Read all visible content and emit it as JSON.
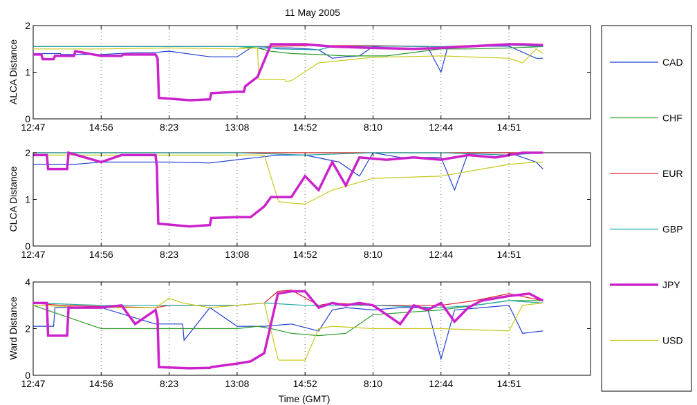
{
  "chart_data": [
    {
      "type": "line",
      "title": "11 May 2005",
      "ylabel": "ALCA Distance",
      "xlabel": "",
      "xlim": [
        0,
        820
      ],
      "ylim": [
        0,
        2
      ],
      "yticks": [
        0,
        1,
        2
      ],
      "xtick_positions": [
        0,
        100,
        200,
        300,
        400,
        500,
        600,
        700
      ],
      "xtick_labels": [
        "12:47",
        "14:56",
        "8:23",
        "13:08",
        "14:52",
        "8:10",
        "12:44",
        "14:51"
      ],
      "grid": "vertical dotted",
      "series": [
        {
          "name": "CAD",
          "color": "#1f3fd1",
          "x": [
            0,
            40,
            41,
            100,
            150,
            180,
            190,
            200,
            260,
            300,
            320,
            380,
            405,
            420,
            440,
            460,
            480,
            500,
            520,
            580,
            600,
            610,
            620,
            700,
            740,
            750
          ],
          "y": [
            1.4,
            1.4,
            1.38,
            1.38,
            1.42,
            1.42,
            1.44,
            1.45,
            1.33,
            1.33,
            1.52,
            1.52,
            1.5,
            1.48,
            1.3,
            1.33,
            1.35,
            1.55,
            1.56,
            1.55,
            1.0,
            1.55,
            1.55,
            1.56,
            1.3,
            1.3
          ]
        },
        {
          "name": "CHF",
          "color": "#2a9a2a",
          "x": [
            0,
            100,
            200,
            300,
            330,
            350,
            380,
            420,
            460,
            520,
            600,
            640,
            700,
            750
          ],
          "y": [
            1.55,
            1.55,
            1.55,
            1.55,
            1.52,
            1.45,
            1.4,
            1.38,
            1.35,
            1.35,
            1.5,
            1.5,
            1.52,
            1.55
          ]
        },
        {
          "name": "EUR",
          "color": "#e0202a",
          "x": [
            0,
            40,
            100,
            200,
            300,
            340,
            400,
            500,
            600,
            700,
            750
          ],
          "y": [
            1.55,
            1.55,
            1.55,
            1.55,
            1.55,
            1.55,
            1.57,
            1.57,
            1.55,
            1.6,
            1.58
          ]
        },
        {
          "name": "GBP",
          "color": "#1aa6a6",
          "x": [
            0,
            100,
            200,
            300,
            340,
            360,
            420,
            440,
            480,
            520,
            600,
            700,
            750
          ],
          "y": [
            1.55,
            1.55,
            1.55,
            1.55,
            1.55,
            1.5,
            1.48,
            1.55,
            1.56,
            1.56,
            1.55,
            1.58,
            1.55
          ]
        },
        {
          "name": "JPY",
          "color": "#cc22cc",
          "x": [
            0,
            12,
            14,
            30,
            32,
            60,
            62,
            100,
            130,
            132,
            180,
            183,
            185,
            230,
            232,
            260,
            262,
            300,
            310,
            312,
            330,
            350,
            400,
            440,
            500,
            560,
            600,
            700,
            720,
            750
          ],
          "y": [
            1.38,
            1.38,
            1.28,
            1.28,
            1.35,
            1.35,
            1.45,
            1.35,
            1.35,
            1.38,
            1.38,
            1.3,
            0.45,
            0.4,
            0.4,
            0.42,
            0.55,
            0.58,
            0.58,
            0.7,
            0.9,
            1.6,
            1.6,
            1.55,
            1.52,
            1.5,
            1.52,
            1.6,
            1.6,
            1.58
          ]
        },
        {
          "name": "USD",
          "color": "#c8c81a",
          "x": [
            0,
            100,
            200,
            300,
            330,
            332,
            370,
            372,
            380,
            420,
            500,
            600,
            700,
            720,
            740,
            750
          ],
          "y": [
            1.5,
            1.5,
            1.52,
            1.5,
            1.52,
            0.85,
            0.85,
            0.8,
            0.82,
            1.2,
            1.32,
            1.35,
            1.3,
            1.2,
            1.5,
            1.4
          ]
        }
      ]
    },
    {
      "type": "line",
      "title": "",
      "ylabel": "CLCA Distance",
      "xlabel": "",
      "xlim": [
        0,
        820
      ],
      "ylim": [
        0,
        2
      ],
      "yticks": [
        0,
        1,
        2
      ],
      "xtick_positions": [
        0,
        100,
        200,
        300,
        400,
        500,
        600,
        700
      ],
      "xtick_labels": [
        "12:47",
        "14:56",
        "8:23",
        "13:08",
        "14:52",
        "8:10",
        "12:44",
        "14:51"
      ],
      "grid": "vertical dotted",
      "series": [
        {
          "name": "CAD",
          "color": "#1f3fd1",
          "x": [
            0,
            60,
            100,
            200,
            260,
            300,
            330,
            360,
            400,
            450,
            480,
            500,
            540,
            600,
            620,
            640,
            700,
            740,
            750
          ],
          "y": [
            1.75,
            1.75,
            1.8,
            1.8,
            1.78,
            1.85,
            1.9,
            1.95,
            1.95,
            1.8,
            1.5,
            2.0,
            1.9,
            1.9,
            1.2,
            2.0,
            2.0,
            1.8,
            1.65
          ]
        },
        {
          "name": "CHF",
          "color": "#2a9a2a",
          "x": [
            0,
            100,
            200,
            300,
            400,
            500,
            600,
            700,
            750
          ],
          "y": [
            2.0,
            2.0,
            2.0,
            2.0,
            2.0,
            2.0,
            2.0,
            2.0,
            2.0
          ]
        },
        {
          "name": "EUR",
          "color": "#e0202a",
          "x": [
            0,
            100,
            200,
            300,
            400,
            500,
            600,
            700,
            750
          ],
          "y": [
            2.0,
            2.0,
            2.0,
            2.0,
            2.0,
            2.0,
            2.0,
            2.0,
            2.0
          ]
        },
        {
          "name": "GBP",
          "color": "#1aa6a6",
          "x": [
            0,
            100,
            200,
            300,
            400,
            500,
            600,
            700,
            750
          ],
          "y": [
            2.0,
            2.0,
            2.0,
            2.0,
            1.95,
            2.0,
            2.0,
            1.95,
            2.0
          ]
        },
        {
          "name": "JPY",
          "color": "#cc22cc",
          "x": [
            0,
            20,
            22,
            50,
            52,
            100,
            130,
            180,
            182,
            184,
            230,
            260,
            262,
            300,
            320,
            340,
            350,
            380,
            382,
            400,
            420,
            440,
            460,
            480,
            520,
            560,
            600,
            640,
            680,
            720,
            750
          ],
          "y": [
            1.95,
            1.95,
            1.65,
            1.65,
            2.0,
            1.8,
            1.95,
            1.95,
            1.7,
            0.48,
            0.42,
            0.45,
            0.6,
            0.62,
            0.62,
            0.85,
            1.05,
            1.05,
            1.1,
            1.5,
            1.2,
            1.8,
            1.3,
            1.9,
            1.85,
            1.9,
            1.85,
            1.95,
            1.9,
            2.0,
            2.0
          ]
        },
        {
          "name": "USD",
          "color": "#c8c81a",
          "x": [
            0,
            100,
            200,
            300,
            320,
            340,
            360,
            362,
            380,
            400,
            440,
            500,
            600,
            700,
            740,
            750
          ],
          "y": [
            1.95,
            1.95,
            1.95,
            1.95,
            1.95,
            1.95,
            1.0,
            0.95,
            0.92,
            0.9,
            1.2,
            1.45,
            1.5,
            1.75,
            1.8,
            1.8
          ]
        }
      ]
    },
    {
      "type": "line",
      "title": "",
      "ylabel": "Ward Distance",
      "xlabel": "Time (GMT)",
      "xlim": [
        0,
        820
      ],
      "ylim": [
        0,
        4
      ],
      "yticks": [
        0,
        2,
        4
      ],
      "xtick_positions": [
        0,
        100,
        200,
        300,
        400,
        500,
        600,
        700
      ],
      "xtick_labels": [
        "12:47",
        "14:56",
        "8:23",
        "13:08",
        "14:52",
        "8:10",
        "12:44",
        "14:51"
      ],
      "grid": "vertical dotted",
      "series": [
        {
          "name": "CAD",
          "color": "#1f3fd1",
          "x": [
            0,
            30,
            32,
            100,
            180,
            200,
            220,
            222,
            260,
            300,
            340,
            380,
            420,
            440,
            460,
            500,
            540,
            580,
            600,
            620,
            700,
            720,
            750
          ],
          "y": [
            2.1,
            2.1,
            2.9,
            2.9,
            2.2,
            2.2,
            2.2,
            1.5,
            2.9,
            2.1,
            2.1,
            2.2,
            1.9,
            2.8,
            2.9,
            2.8,
            2.9,
            2.9,
            0.7,
            2.8,
            3.0,
            1.8,
            1.9
          ]
        },
        {
          "name": "CHF",
          "color": "#2a9a2a",
          "x": [
            0,
            100,
            200,
            300,
            330,
            350,
            380,
            420,
            460,
            500,
            600,
            700,
            750
          ],
          "y": [
            3.0,
            2.0,
            2.0,
            2.0,
            2.1,
            2.0,
            1.8,
            1.7,
            1.8,
            2.6,
            2.8,
            3.2,
            3.2
          ]
        },
        {
          "name": "EUR",
          "color": "#e0202a",
          "x": [
            0,
            40,
            100,
            180,
            200,
            300,
            340,
            360,
            380,
            420,
            440,
            500,
            600,
            650,
            700,
            750
          ],
          "y": [
            3.1,
            3.0,
            2.95,
            2.9,
            3.0,
            3.0,
            3.1,
            3.6,
            3.65,
            3.0,
            3.1,
            3.0,
            3.0,
            3.2,
            3.5,
            3.2
          ]
        },
        {
          "name": "GBP",
          "color": "#1aa6a6",
          "x": [
            0,
            100,
            200,
            300,
            340,
            400,
            500,
            600,
            650,
            700,
            750
          ],
          "y": [
            3.1,
            3.0,
            3.0,
            3.0,
            3.1,
            3.0,
            3.0,
            2.9,
            3.0,
            3.2,
            3.1
          ]
        },
        {
          "name": "JPY",
          "color": "#cc22cc",
          "x": [
            0,
            20,
            22,
            50,
            52,
            100,
            130,
            150,
            180,
            183,
            185,
            230,
            260,
            262,
            300,
            320,
            340,
            360,
            380,
            400,
            420,
            440,
            460,
            480,
            500,
            540,
            560,
            580,
            600,
            620,
            640,
            660,
            700,
            730,
            750
          ],
          "y": [
            3.1,
            3.1,
            1.7,
            1.7,
            2.9,
            2.9,
            3.0,
            2.2,
            2.8,
            2.4,
            0.35,
            0.3,
            0.32,
            0.35,
            0.5,
            0.6,
            0.95,
            3.5,
            3.6,
            3.6,
            2.9,
            3.1,
            3.0,
            3.1,
            3.0,
            2.2,
            3.0,
            2.8,
            3.1,
            2.3,
            2.9,
            3.2,
            3.4,
            3.5,
            3.2
          ]
        },
        {
          "name": "USD",
          "color": "#c8c81a",
          "x": [
            0,
            100,
            180,
            200,
            220,
            240,
            260,
            300,
            340,
            360,
            362,
            400,
            420,
            440,
            500,
            600,
            700,
            720,
            750
          ],
          "y": [
            3.0,
            2.9,
            2.9,
            3.3,
            3.1,
            3.0,
            2.9,
            3.0,
            3.1,
            0.7,
            0.65,
            0.65,
            2.0,
            2.1,
            2.0,
            2.0,
            1.9,
            3.0,
            3.1
          ]
        }
      ]
    }
  ],
  "legend": {
    "position": "right",
    "entries": [
      {
        "name": "CAD",
        "color": "#1f3fd1",
        "bold": false
      },
      {
        "name": "CHF",
        "color": "#2a9a2a",
        "bold": false
      },
      {
        "name": "EUR",
        "color": "#e0202a",
        "bold": false
      },
      {
        "name": "GBP",
        "color": "#1aa6a6",
        "bold": false
      },
      {
        "name": "JPY",
        "color": "#cc22cc",
        "bold": true
      },
      {
        "name": "USD",
        "color": "#c8c81a",
        "bold": false
      }
    ]
  }
}
